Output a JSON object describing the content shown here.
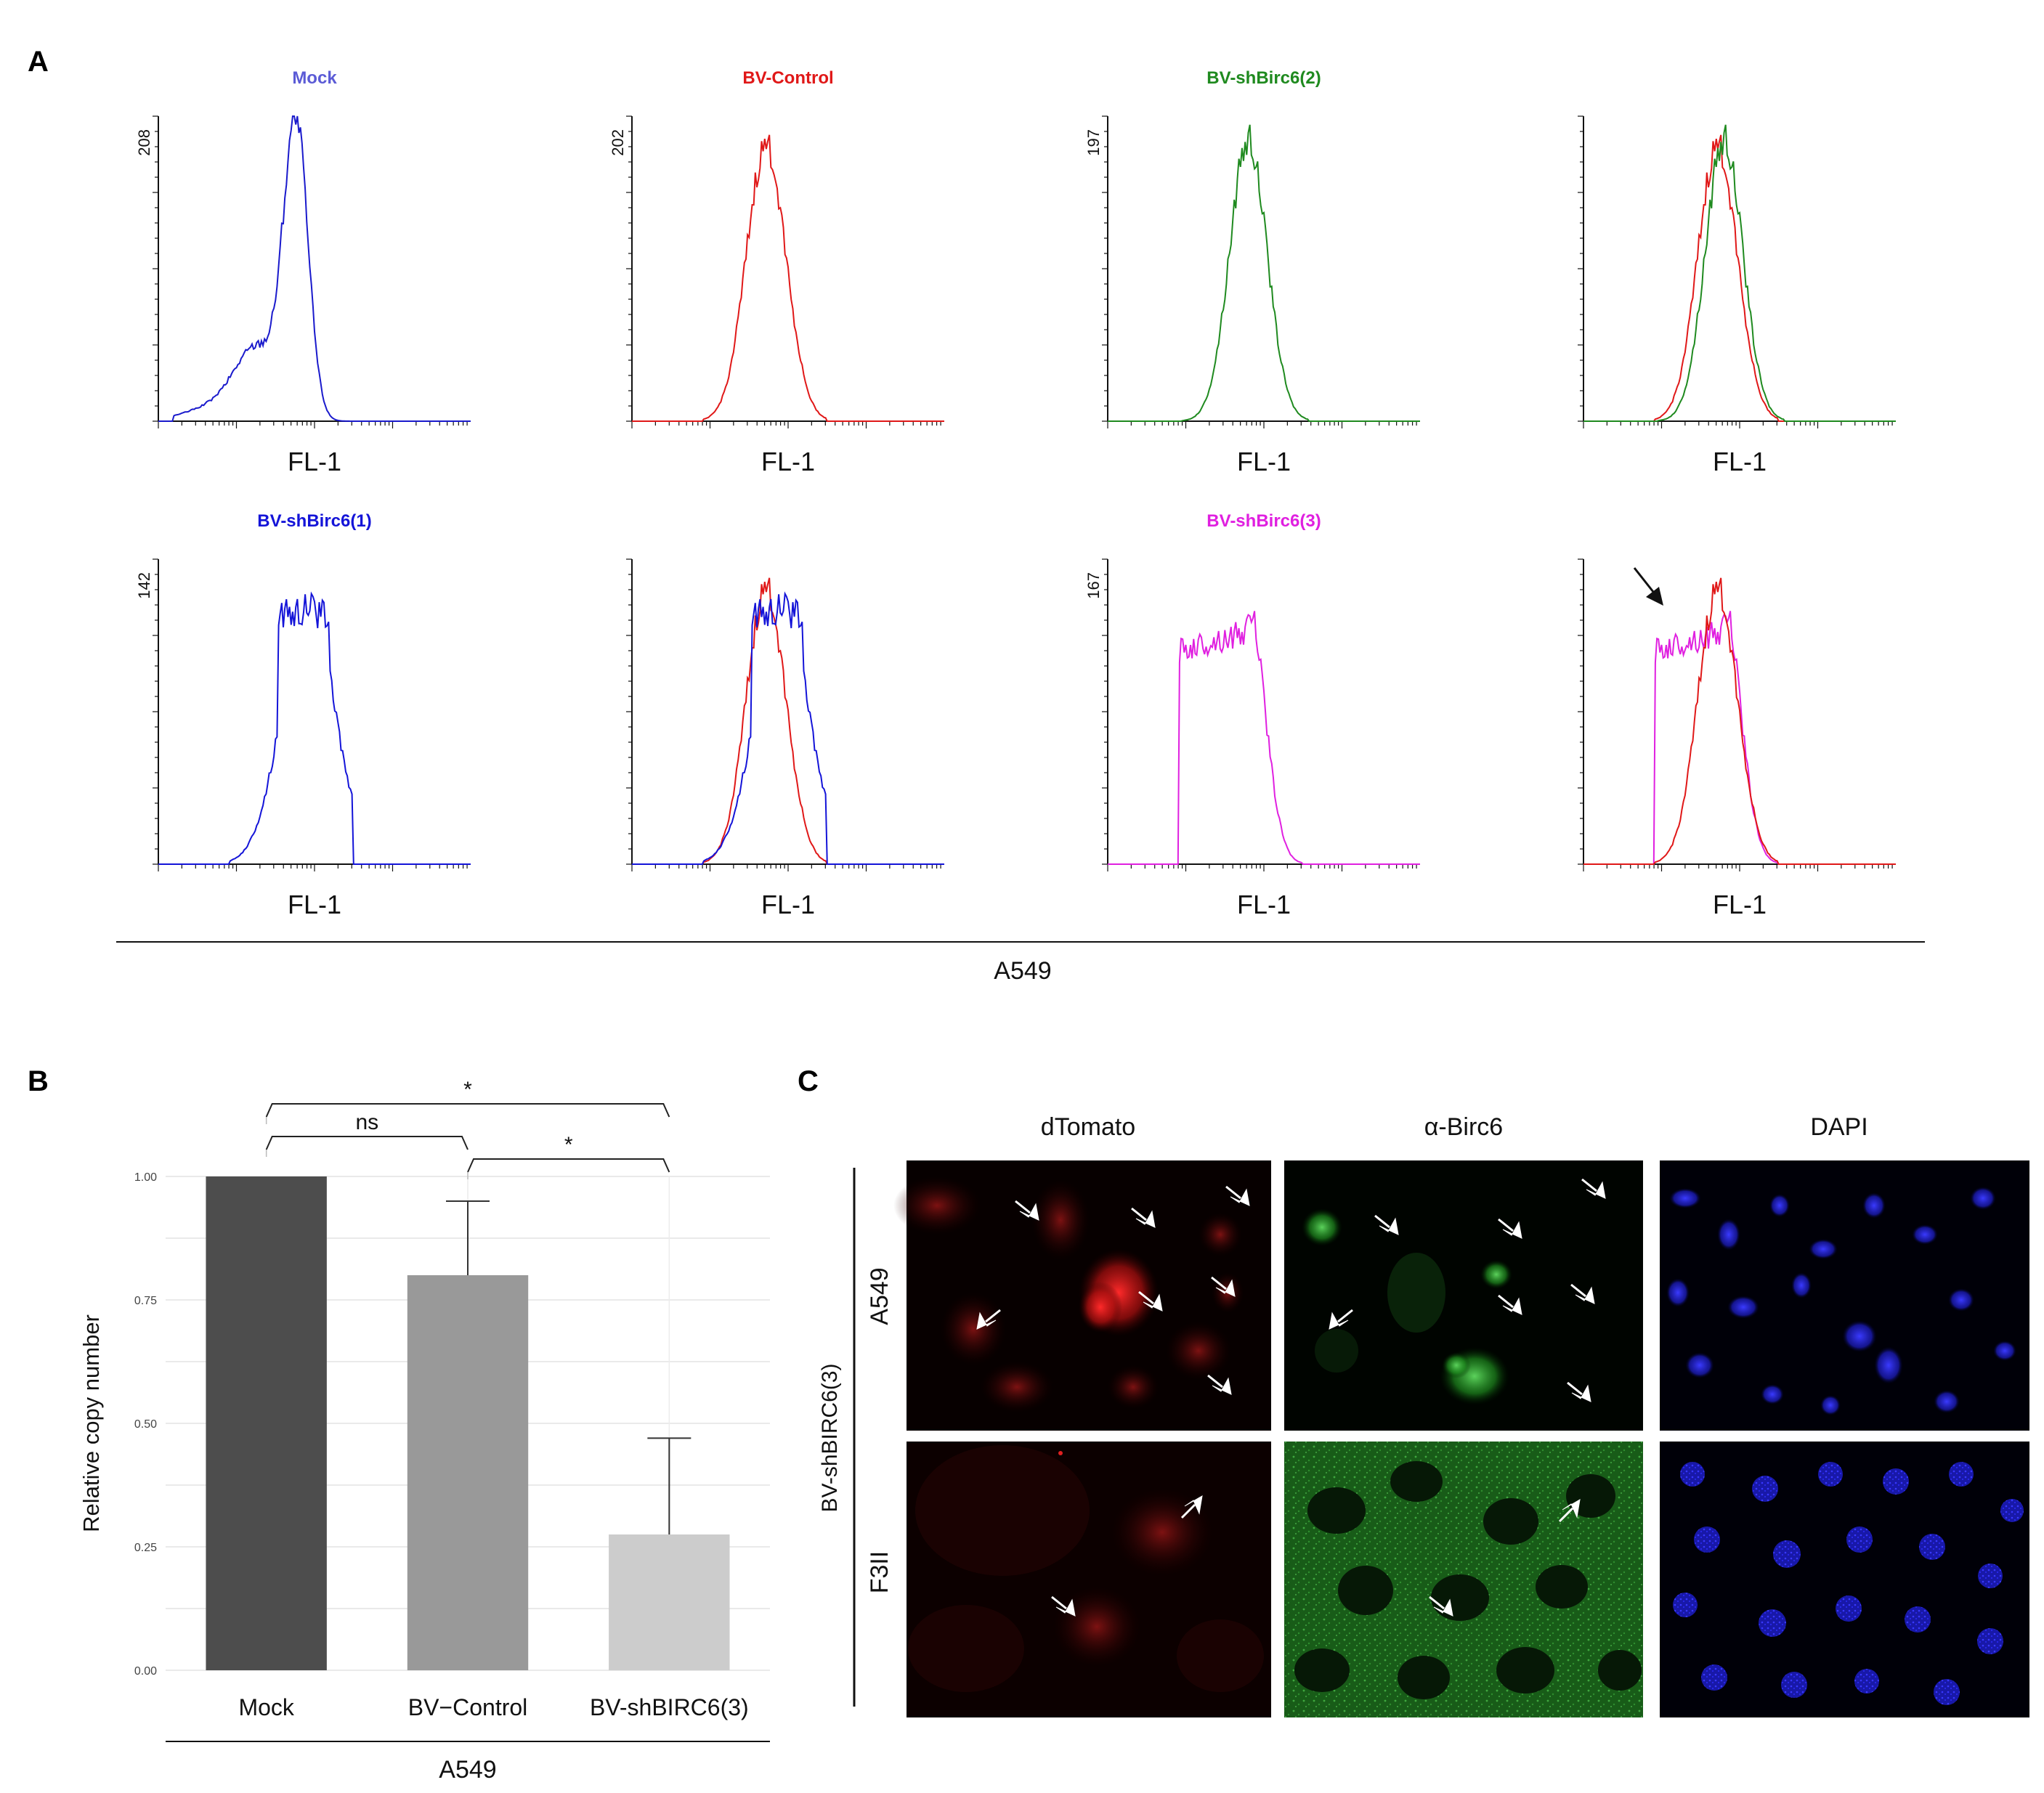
{
  "panel_a": {
    "letter": "A",
    "group_label": "A549",
    "histograms": [
      {
        "id": "mock",
        "title": "Mock",
        "title_color": "#5b5bd6",
        "ymax_label": "208",
        "xlabel": "FL-1",
        "traces": [
          {
            "color": "#1a1acc",
            "shape": "mock"
          }
        ]
      },
      {
        "id": "bv-control",
        "title": "BV-Control",
        "title_color": "#e01818",
        "ymax_label": "202",
        "xlabel": "FL-1",
        "traces": [
          {
            "color": "#e01818",
            "shape": "control"
          }
        ]
      },
      {
        "id": "bv-shbirc6-2",
        "title": "BV-shBirc6(2)",
        "title_color": "#1f8a1f",
        "ymax_label": "197",
        "xlabel": "FL-1",
        "traces": [
          {
            "color": "#1f8a1f",
            "shape": "sh2"
          }
        ]
      },
      {
        "id": "overlay-2",
        "title": "",
        "title_color": "#000000",
        "ymax_label": "",
        "xlabel": "FL-1",
        "traces": [
          {
            "color": "#e01818",
            "shape": "control"
          },
          {
            "color": "#1f8a1f",
            "shape": "sh2"
          }
        ]
      },
      {
        "id": "bv-shbirc6-1",
        "title": "BV-shBirc6(1)",
        "title_color": "#1414d8",
        "ymax_label": "142",
        "xlabel": "FL-1",
        "traces": [
          {
            "color": "#1414d8",
            "shape": "sh1"
          }
        ]
      },
      {
        "id": "overlay-1",
        "title": "",
        "title_color": "#000000",
        "ymax_label": "",
        "xlabel": "FL-1",
        "traces": [
          {
            "color": "#e01818",
            "shape": "control"
          },
          {
            "color": "#1414d8",
            "shape": "sh1"
          }
        ]
      },
      {
        "id": "bv-shbirc6-3",
        "title": "BV-shBirc6(3)",
        "title_color": "#e020e0",
        "ymax_label": "167",
        "xlabel": "FL-1",
        "traces": [
          {
            "color": "#e020e0",
            "shape": "sh3"
          }
        ]
      },
      {
        "id": "overlay-3",
        "title": "",
        "title_color": "#000000",
        "ymax_label": "",
        "xlabel": "FL-1",
        "traces": [
          {
            "color": "#e020e0",
            "shape": "sh3"
          },
          {
            "color": "#e01818",
            "shape": "control"
          }
        ],
        "arrow": true
      }
    ]
  },
  "panel_b": {
    "letter": "B",
    "group_label": "A549",
    "chart_data": {
      "type": "bar",
      "categories": [
        "Mock",
        "BV−Control",
        "BV-shBIRC6(3)"
      ],
      "values": [
        1.0,
        0.8,
        0.275
      ],
      "error_upper": [
        null,
        0.95,
        0.47
      ],
      "bar_colors": [
        "#4d4d4d",
        "#999999",
        "#cccccc"
      ],
      "ylabel": "Relative copy number",
      "xlabel": "",
      "ylim": [
        0,
        1.0
      ],
      "yticks": [
        "0.00",
        "0.25",
        "0.50",
        "0.75",
        "1.00"
      ],
      "significance": [
        {
          "from": 0,
          "to": 2,
          "label": "*"
        },
        {
          "from": 0,
          "to": 1,
          "label": "ns"
        },
        {
          "from": 1,
          "to": 2,
          "label": "*"
        }
      ]
    }
  },
  "panel_c": {
    "letter": "C",
    "columns": [
      "dTomato",
      "α-Birc6",
      "DAPI"
    ],
    "rows": [
      "A549",
      "F3II"
    ],
    "side_label": "BV-shBIRC6(3)"
  }
}
